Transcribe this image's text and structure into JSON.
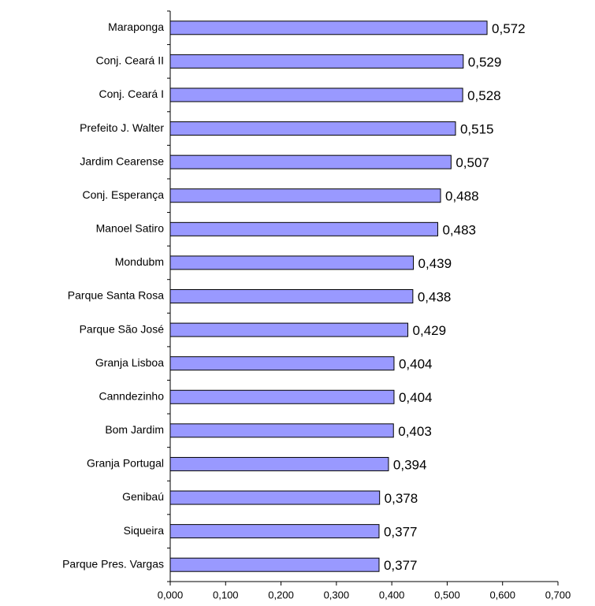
{
  "chart_data": {
    "type": "bar",
    "orientation": "horizontal",
    "categories": [
      "Maraponga",
      "Conj. Ceará II",
      "Conj. Ceará I",
      "Prefeito J. Walter",
      "Jardim Cearense",
      "Conj. Esperança",
      "Manoel Satiro",
      "Mondubm",
      "Parque Santa Rosa",
      "Parque São José",
      "Granja Lisboa",
      "Canndezinho",
      "Bom Jardim",
      "Granja Portugal",
      "Genibaú",
      "Siqueira",
      "Parque Pres. Vargas"
    ],
    "values": [
      0.572,
      0.529,
      0.528,
      0.515,
      0.507,
      0.488,
      0.483,
      0.439,
      0.438,
      0.429,
      0.404,
      0.404,
      0.403,
      0.394,
      0.378,
      0.377,
      0.377
    ],
    "value_labels": [
      "0,572",
      "0,529",
      "0,528",
      "0,515",
      "0,507",
      "0,488",
      "0,483",
      "0,439",
      "0,438",
      "0,429",
      "0,404",
      "0,404",
      "0,403",
      "0,394",
      "0,378",
      "0,377",
      "0,377"
    ],
    "color": "#9999ff",
    "xlim": [
      0,
      0.7
    ],
    "xticks": [
      {
        "value": 0,
        "label": "0,000"
      },
      {
        "value": 0.1,
        "label": "0,100"
      },
      {
        "value": 0.2,
        "label": "0,200"
      },
      {
        "value": 0.3,
        "label": "0,300"
      },
      {
        "value": 0.4,
        "label": "0,400"
      },
      {
        "value": 0.5,
        "label": "0,500"
      },
      {
        "value": 0.6,
        "label": "0,600"
      },
      {
        "value": 0.7,
        "label": "0,700"
      }
    ],
    "grid": false
  }
}
